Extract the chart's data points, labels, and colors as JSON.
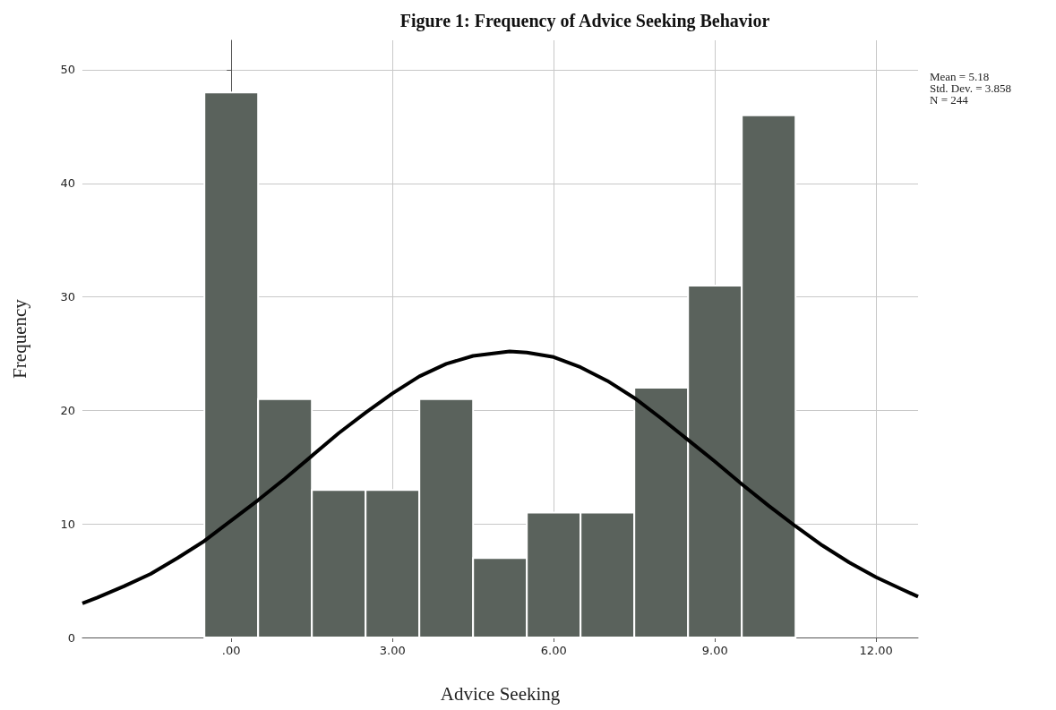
{
  "chart_data": {
    "type": "histogram",
    "title": "Figure 1: Frequency of Advice Seeking Behavior",
    "xlabel": "Advice Seeking",
    "ylabel": "Frequency",
    "bins": [
      -0.5,
      0.5,
      1.5,
      2.5,
      3.5,
      4.5,
      5.5,
      6.5,
      7.5,
      8.5,
      9.5,
      10.5
    ],
    "series": [
      {
        "color": "#5a625c",
        "values": [
          48,
          21,
          13,
          13,
          21,
          7,
          11,
          11,
          22,
          31,
          46
        ]
      },
      {
        "type": "line",
        "color": "#000000",
        "x": [
          -2.77,
          -2.5,
          -2,
          -1.5,
          -1,
          -0.5,
          0,
          0.5,
          1,
          1.5,
          2,
          2.5,
          3,
          3.5,
          4,
          4.5,
          5.18,
          5.5,
          6,
          6.5,
          7,
          7.5,
          8,
          8.5,
          9,
          9.5,
          10,
          10.5,
          11,
          11.5,
          12,
          12.5,
          12.78
        ],
        "values": [
          3.0,
          3.5,
          4.5,
          5.6,
          7.0,
          8.5,
          10.3,
          12.1,
          14.0,
          16.0,
          18.0,
          19.8,
          21.5,
          23.0,
          24.1,
          24.8,
          25.2,
          25.1,
          24.7,
          23.8,
          22.6,
          21.1,
          19.3,
          17.4,
          15.5,
          13.5,
          11.6,
          9.8,
          8.1,
          6.6,
          5.3,
          4.2,
          3.6
        ]
      }
    ],
    "xlim": [
      -2.77,
      12.78
    ],
    "xticks": [
      {
        "value": 0,
        "label": ".00"
      },
      {
        "value": 3,
        "label": "3.00"
      },
      {
        "value": 6,
        "label": "6.00"
      },
      {
        "value": 9,
        "label": "9.00"
      },
      {
        "value": 12,
        "label": "12.00"
      }
    ],
    "ylim": [
      0,
      52.6
    ],
    "yticks": [
      0,
      10,
      20,
      30,
      40,
      50
    ],
    "grid": true,
    "marker": "none",
    "line_style": "solid",
    "annotations": [
      "Mean = 5.18",
      "Std. Dev. = 3.858",
      "N = 244"
    ]
  }
}
